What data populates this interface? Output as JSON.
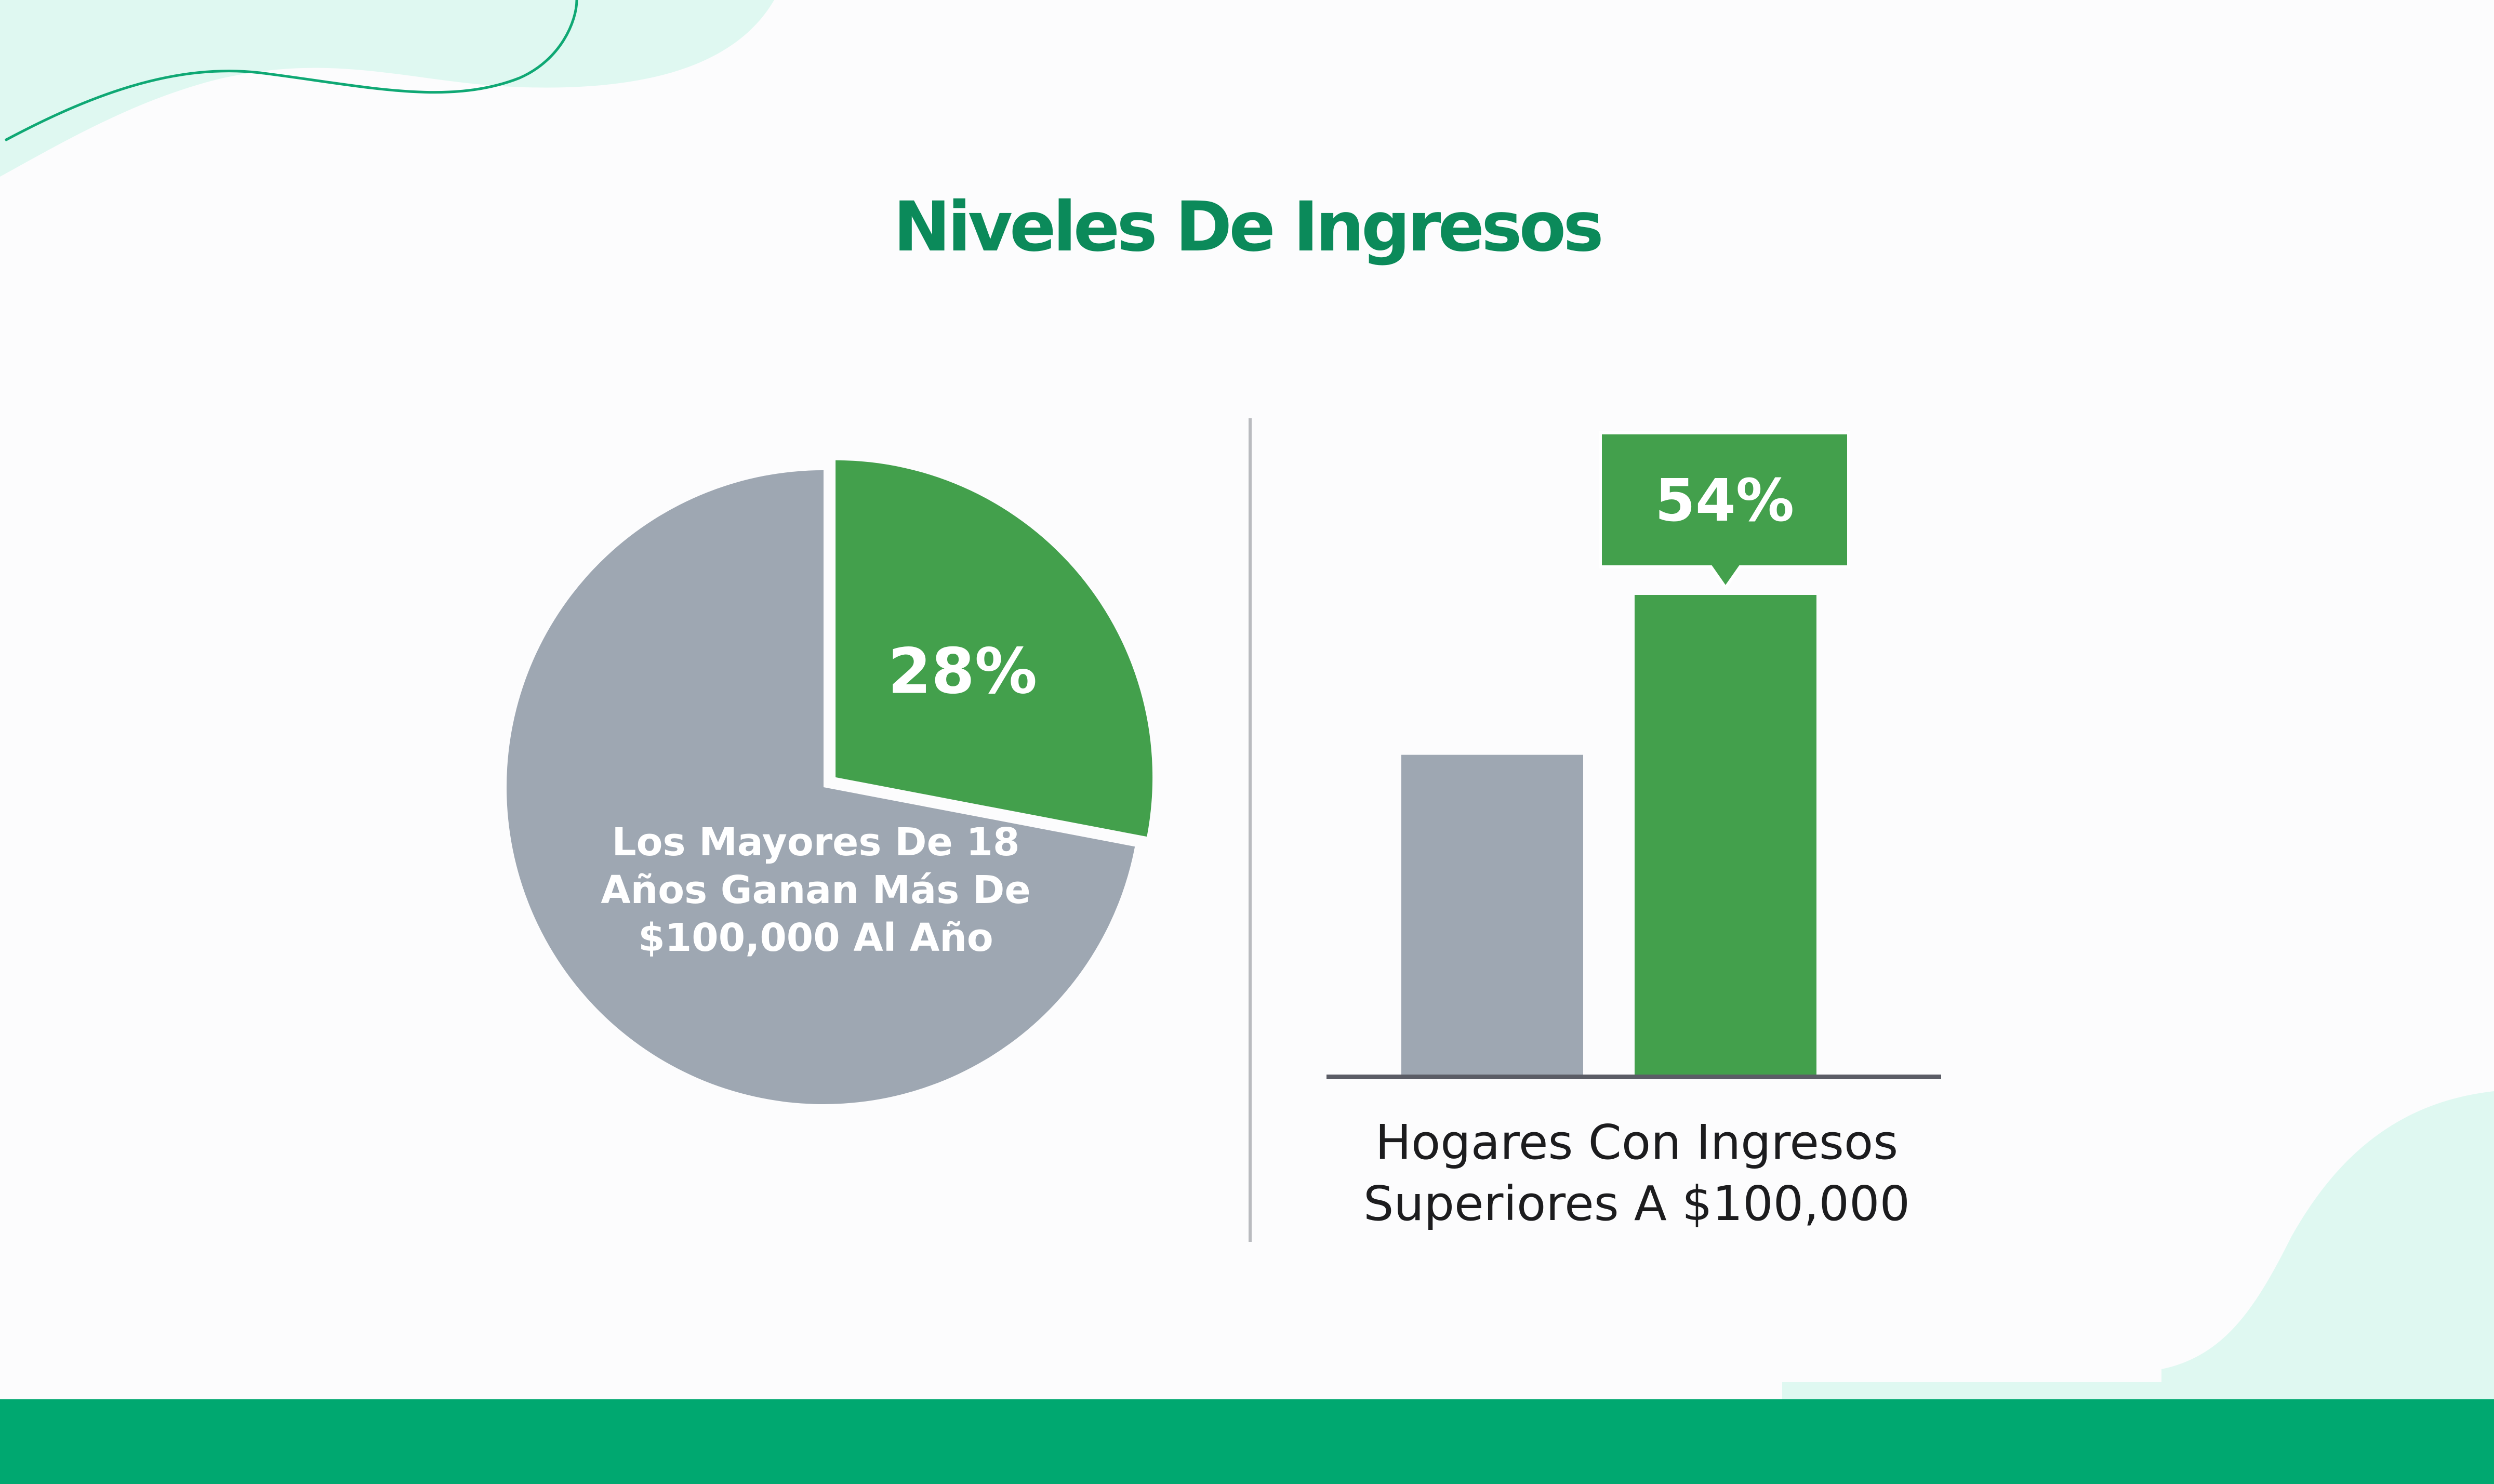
{
  "title": "Niveles De Ingresos",
  "colors": {
    "title": "#0b8a5a",
    "accent_green": "#43a04c",
    "neutral_gray": "#9ea7b2",
    "footer": "#00a870",
    "decor_mint": "#dff8f1",
    "decor_line": "#0fa874",
    "axis": "#5b5d66"
  },
  "chart_data": [
    {
      "type": "pie",
      "slices": [
        {
          "label": "28%",
          "value": 28,
          "color": "#43a04c",
          "exploded": true
        },
        {
          "value": 72,
          "color": "#9ea7b2"
        }
      ],
      "label_lines": [
        "Los Mayores De 18",
        "Años Ganan Más De",
        "$100,000 Al Año"
      ]
    },
    {
      "type": "bar",
      "bars": [
        {
          "value": 36,
          "color": "#9ea7b2"
        },
        {
          "value": 54,
          "color": "#43a04c",
          "callout": "54%"
        }
      ],
      "caption_lines": [
        "Hogares Con Ingresos",
        "Superiores A $100,000"
      ]
    }
  ]
}
